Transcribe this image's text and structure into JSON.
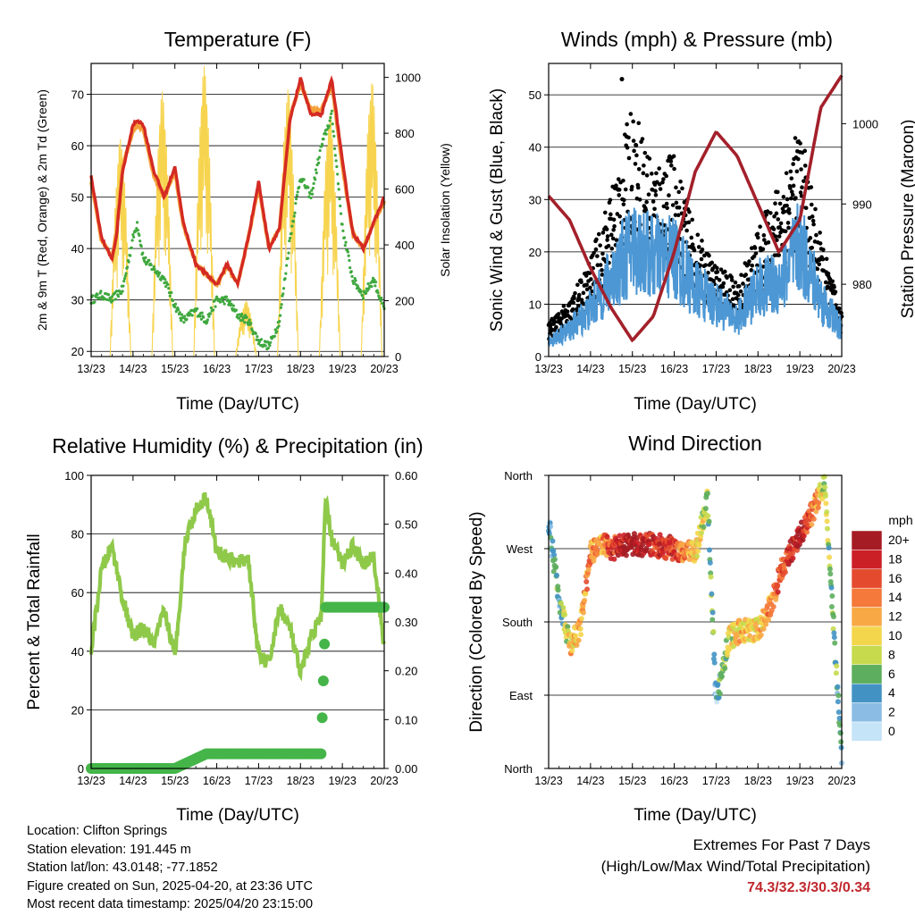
{
  "figure": {
    "time_ticks": [
      "13/23",
      "14/23",
      "15/23",
      "16/23",
      "17/23",
      "18/23",
      "19/23",
      "20/23"
    ]
  },
  "colors": {
    "temp_red": "#d42a23",
    "temp_orange": "#f5a13a",
    "dewpoint_green": "#3fa83f",
    "solar_yellow": "#f7d44f",
    "wind_blue": "#4c97d4",
    "gust_black": "#000000",
    "pressure_maroon": "#a3202a",
    "rh_green": "#8fc94a",
    "precip_green": "#45b549",
    "extremes_red": "#c0272d"
  },
  "chart_data": [
    {
      "id": "temperature",
      "type": "line",
      "title": "Temperature (F)",
      "xlabel": "Time (Day/UTC)",
      "ylabel": "2m & 9m T (Red, Orange) & 2m Td (Green)",
      "y2label": "Solar Insolation (Yellow)",
      "xlim": [
        0,
        7
      ],
      "ylim": [
        19,
        76
      ],
      "y2lim": [
        0,
        1050
      ],
      "yticks": [
        20,
        30,
        40,
        50,
        60,
        70
      ],
      "y2ticks": [
        0,
        200,
        400,
        600,
        800,
        1000
      ],
      "grid": true,
      "x": [
        0,
        0.25,
        0.5,
        0.6,
        0.75,
        1.0,
        1.1,
        1.25,
        1.5,
        1.75,
        2.0,
        2.2,
        2.5,
        2.75,
        3.0,
        3.25,
        3.5,
        3.75,
        4.0,
        4.25,
        4.5,
        4.75,
        5.0,
        5.25,
        5.5,
        5.75,
        6.0,
        6.25,
        6.5,
        6.75,
        7.0
      ],
      "series": [
        {
          "name": "2m T",
          "values": [
            54,
            42,
            38,
            42,
            55,
            64,
            65,
            64,
            55,
            50,
            56,
            45,
            37,
            35,
            33,
            37,
            33,
            42,
            53,
            40,
            44,
            65,
            73,
            66,
            66,
            73,
            57,
            43,
            40,
            45,
            50
          ]
        },
        {
          "name": "9m T",
          "values": [
            53,
            41.5,
            38.5,
            43,
            56,
            63,
            64,
            63,
            54,
            50,
            55,
            44.5,
            37,
            35,
            33,
            36.5,
            33,
            42,
            52,
            40,
            44,
            66,
            72,
            67,
            67,
            72,
            56,
            43,
            40,
            45,
            49
          ]
        },
        {
          "name": "2m Td",
          "values": [
            30,
            31,
            30,
            31,
            32,
            42,
            45,
            38,
            36,
            34,
            29,
            26,
            28,
            26,
            30,
            30,
            27,
            26,
            22,
            21,
            26,
            42,
            54,
            50,
            60,
            66,
            44,
            34,
            31,
            34,
            28
          ]
        }
      ],
      "solar": [
        {
          "day_start": 0.45,
          "peak": 780
        },
        {
          "day_start": 1.45,
          "peak": 950
        },
        {
          "day_start": 2.45,
          "peak": 1040
        },
        {
          "day_start": 3.45,
          "peak": 200
        },
        {
          "day_start": 4.45,
          "peak": 960
        },
        {
          "day_start": 5.45,
          "peak": 870
        },
        {
          "day_start": 6.45,
          "peak": 990
        }
      ]
    },
    {
      "id": "winds",
      "type": "scatter",
      "title": "Winds (mph) & Pressure (mb)",
      "xlabel": "Time (Day/UTC)",
      "ylabel": "Sonic Wind & Gust (Blue, Black)",
      "y2label": "Station Pressure (Maroon)",
      "xlim": [
        0,
        7
      ],
      "ylim": [
        0,
        56
      ],
      "y2lim": [
        971,
        1007.5
      ],
      "yticks": [
        0,
        10,
        20,
        30,
        40,
        50
      ],
      "y2ticks": [
        980,
        990,
        1000
      ],
      "grid": true,
      "x": [
        0,
        0.5,
        1.0,
        1.5,
        2.0,
        2.5,
        3.0,
        3.5,
        4.0,
        4.5,
        5.0,
        5.5,
        6.0,
        6.5,
        7.0
      ],
      "series": [
        {
          "name": "Sonic Wind",
          "values": [
            3,
            5,
            9,
            15,
            21,
            19,
            19,
            13,
            10,
            7,
            13,
            14,
            21,
            11,
            5
          ]
        },
        {
          "name": "Gust",
          "values": [
            5,
            8,
            14,
            24,
            36,
            28,
            29,
            18,
            13,
            11,
            18,
            25,
            33,
            17,
            6
          ]
        },
        {
          "name": "Station Pressure",
          "values": [
            991,
            988,
            982,
            977,
            973,
            976,
            984,
            994,
            999,
            996,
            990,
            984,
            988,
            1002,
            1006
          ]
        }
      ],
      "max_gust_point": {
        "x": 1.75,
        "y": 53
      }
    },
    {
      "id": "humidity",
      "type": "line",
      "title": "Relative Humidity (%) & Precipitation (in)",
      "xlabel": "Time (Day/UTC)",
      "ylabel": "Percent & Total Rainfall",
      "xlim": [
        0,
        7
      ],
      "ylim": [
        0,
        100
      ],
      "y2lim": [
        0,
        0.6
      ],
      "yticks": [
        0,
        20,
        40,
        60,
        80,
        100
      ],
      "y2ticks": [
        "0.00",
        "0.10",
        "0.20",
        "0.30",
        "0.40",
        "0.50",
        "0.60"
      ],
      "grid": true,
      "x": [
        0,
        0.25,
        0.5,
        0.75,
        1.0,
        1.25,
        1.5,
        1.75,
        2.0,
        2.25,
        2.5,
        2.75,
        3.0,
        3.25,
        3.5,
        3.75,
        4.0,
        4.25,
        4.5,
        4.75,
        5.0,
        5.25,
        5.5,
        5.6,
        5.75,
        6.0,
        6.25,
        6.5,
        6.75,
        7.0
      ],
      "series": [
        {
          "name": "Relative Humidity",
          "values": [
            40,
            68,
            76,
            58,
            45,
            48,
            42,
            54,
            38,
            78,
            88,
            93,
            74,
            72,
            70,
            72,
            38,
            36,
            55,
            48,
            32,
            45,
            52,
            92,
            78,
            70,
            76,
            70,
            72,
            42
          ]
        },
        {
          "name": "Total Precipitation",
          "values": [
            0,
            0,
            0,
            0,
            0,
            0,
            0,
            0,
            0,
            0.01,
            0.02,
            0.03,
            0.03,
            0.03,
            0.03,
            0.03,
            0.03,
            0.03,
            0.03,
            0.03,
            0.03,
            0.03,
            0.03,
            0.33,
            0.33,
            0.33,
            0.33,
            0.33,
            0.33,
            0.33
          ]
        }
      ]
    },
    {
      "id": "direction",
      "type": "scatter",
      "title": "Wind Direction",
      "xlabel": "Time (Day/UTC)",
      "ylabel": "Direction (Colored By Speed)",
      "xlim": [
        0,
        7
      ],
      "ylim": [
        0,
        360
      ],
      "ytick_labels": [
        "North",
        "East",
        "South",
        "West",
        "North"
      ],
      "grid": true,
      "x": [
        0,
        0.25,
        0.5,
        0.75,
        1.0,
        1.25,
        1.5,
        2.0,
        2.5,
        3.0,
        3.5,
        3.8,
        4.0,
        4.3,
        4.6,
        5.0,
        5.3,
        5.6,
        6.0,
        6.3,
        6.6,
        7.0
      ],
      "series": [
        {
          "name": "Direction",
          "values": [
            300,
            210,
            150,
            170,
            265,
            275,
            270,
            275,
            275,
            270,
            265,
            330,
            80,
            160,
            170,
            170,
            200,
            250,
            285,
            315,
            350,
            10
          ]
        },
        {
          "name": "Speed",
          "values": [
            3,
            5,
            10,
            12,
            14,
            12,
            17,
            20,
            18,
            17,
            10,
            8,
            3,
            9,
            11,
            10,
            13,
            16,
            20,
            14,
            8,
            4
          ]
        }
      ],
      "legend": {
        "title": "mph",
        "labels": [
          "20+",
          "18",
          "16",
          "14",
          "12",
          "10",
          "8",
          "6",
          "4",
          "2",
          "0"
        ],
        "colors": [
          "#a51c24",
          "#cc2027",
          "#e44b2e",
          "#f4793a",
          "#f8a946",
          "#f4d64d",
          "#c7da4e",
          "#5dae5e",
          "#4293c4",
          "#8bbde4",
          "#c6e4f7"
        ],
        "placement": "right"
      }
    }
  ],
  "info": {
    "location": "Location: Clifton Springs",
    "elevation": "Station elevation: 191.445 m",
    "latlon": "Station lat/lon: 43.0148; -77.1852",
    "created": "Figure created on Sun, 2025-04-20, at 23:36 UTC",
    "latest": "Most recent data timestamp: 2025/04/20 23:15:00"
  },
  "extremes": {
    "title": "Extremes For Past 7 Days",
    "subtitle": "(High/Low/Max Wind/Total Precipitation)",
    "values": "74.3/32.3/30.3/0.34"
  }
}
